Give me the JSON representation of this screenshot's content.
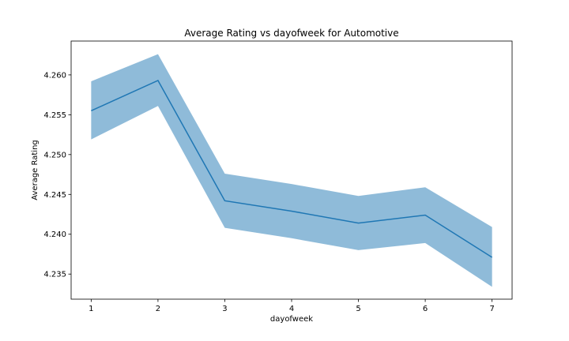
{
  "chart_data": {
    "type": "line",
    "title": "Average Rating vs dayofweek for Automotive",
    "xlabel": "dayofweek",
    "ylabel": "Average Rating",
    "x": [
      1,
      2,
      3,
      4,
      5,
      6,
      7
    ],
    "series": [
      {
        "values": [
          4.2555,
          4.2593,
          4.2442,
          4.2429,
          4.2414,
          4.2424,
          4.2371
        ],
        "ci_lower": [
          4.2519,
          4.2561,
          4.2408,
          4.2395,
          4.238,
          4.2389,
          4.2334
        ],
        "ci_upper": [
          4.2592,
          4.2626,
          4.2476,
          4.2463,
          4.2448,
          4.2459,
          4.2409
        ],
        "color": "#1f77b4",
        "band_color": "#1f77b4"
      }
    ],
    "xticks": [
      "1",
      "2",
      "3",
      "4",
      "5",
      "6",
      "7"
    ],
    "yticks": [
      "4.235",
      "4.240",
      "4.245",
      "4.250",
      "4.255",
      "4.260"
    ],
    "xlim": [
      0.7,
      7.3
    ],
    "ylim": [
      4.23185,
      4.26425
    ],
    "grid": false,
    "legend": "none"
  }
}
